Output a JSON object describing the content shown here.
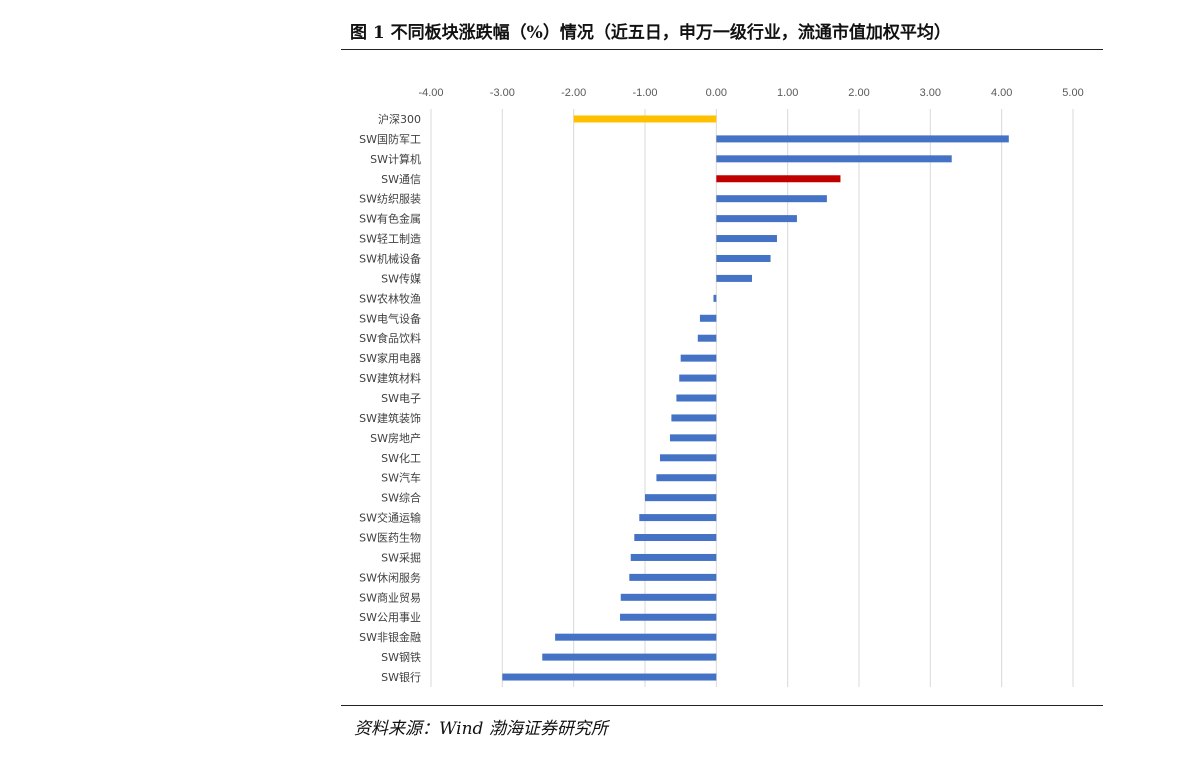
{
  "title": "图 1 不同板块涨跌幅（%）情况（近五日，申万一级行业，流通市值加权平均）",
  "source": "资料来源：Wind  渤海证券研究所",
  "chart_data": {
    "type": "bar",
    "orientation": "horizontal",
    "title": "图 1 不同板块涨跌幅（%）情况（近五日，申万一级行业，流通市值加权平均）",
    "xlabel": "",
    "ylabel": "",
    "xlim": [
      -4,
      5
    ],
    "x_ticks": [
      "-4.00",
      "-3.00",
      "-2.00",
      "-1.00",
      "0.00",
      "1.00",
      "2.00",
      "3.00",
      "4.00",
      "5.00"
    ],
    "x_tick_values": [
      -4,
      -3,
      -2,
      -1,
      0,
      1,
      2,
      3,
      4,
      5
    ],
    "grid": "vertical",
    "legend": "none",
    "colors": {
      "default": "#4472C4",
      "benchmark": "#FFC000",
      "highlight": "#C00000"
    },
    "bars": [
      {
        "label": "沪深300",
        "value": -2.0,
        "color": "#FFC000"
      },
      {
        "label": "SW国防军工",
        "value": 4.1,
        "color": "#4472C4"
      },
      {
        "label": "SW计算机",
        "value": 3.3,
        "color": "#4472C4"
      },
      {
        "label": "SW通信",
        "value": 1.74,
        "color": "#C00000"
      },
      {
        "label": "SW纺织服装",
        "value": 1.55,
        "color": "#4472C4"
      },
      {
        "label": "SW有色金属",
        "value": 1.13,
        "color": "#4472C4"
      },
      {
        "label": "SW轻工制造",
        "value": 0.85,
        "color": "#4472C4"
      },
      {
        "label": "SW机械设备",
        "value": 0.76,
        "color": "#4472C4"
      },
      {
        "label": "SW传媒",
        "value": 0.5,
        "color": "#4472C4"
      },
      {
        "label": "SW农林牧渔",
        "value": -0.04,
        "color": "#4472C4"
      },
      {
        "label": "SW电气设备",
        "value": -0.23,
        "color": "#4472C4"
      },
      {
        "label": "SW食品饮料",
        "value": -0.26,
        "color": "#4472C4"
      },
      {
        "label": "SW家用电器",
        "value": -0.5,
        "color": "#4472C4"
      },
      {
        "label": "SW建筑材料",
        "value": -0.52,
        "color": "#4472C4"
      },
      {
        "label": "SW电子",
        "value": -0.56,
        "color": "#4472C4"
      },
      {
        "label": "SW建筑装饰",
        "value": -0.63,
        "color": "#4472C4"
      },
      {
        "label": "SW房地产",
        "value": -0.65,
        "color": "#4472C4"
      },
      {
        "label": "SW化工",
        "value": -0.79,
        "color": "#4472C4"
      },
      {
        "label": "SW汽车",
        "value": -0.84,
        "color": "#4472C4"
      },
      {
        "label": "SW综合",
        "value": -1.0,
        "color": "#4472C4"
      },
      {
        "label": "SW交通运输",
        "value": -1.08,
        "color": "#4472C4"
      },
      {
        "label": "SW医药生物",
        "value": -1.15,
        "color": "#4472C4"
      },
      {
        "label": "SW采掘",
        "value": -1.2,
        "color": "#4472C4"
      },
      {
        "label": "SW休闲服务",
        "value": -1.22,
        "color": "#4472C4"
      },
      {
        "label": "SW商业贸易",
        "value": -1.34,
        "color": "#4472C4"
      },
      {
        "label": "SW公用事业",
        "value": -1.35,
        "color": "#4472C4"
      },
      {
        "label": "SW非银金融",
        "value": -2.26,
        "color": "#4472C4"
      },
      {
        "label": "SW钢铁",
        "value": -2.44,
        "color": "#4472C4"
      },
      {
        "label": "SW银行",
        "value": -3.0,
        "color": "#4472C4"
      }
    ]
  }
}
